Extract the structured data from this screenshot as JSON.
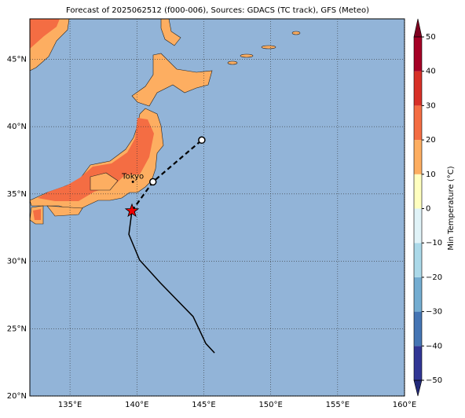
{
  "chart_data": {
    "type": "map",
    "title": "Forecast of 2025062512 (f000-006), Sources: GDACS (TC track), GFS (Meteo)",
    "xlim": [
      132,
      160
    ],
    "ylim": [
      20,
      48
    ],
    "xticks": [
      {
        "value": 135,
        "label": "135°E"
      },
      {
        "value": 140,
        "label": "140°E"
      },
      {
        "value": 145,
        "label": "145°E"
      },
      {
        "value": 150,
        "label": "150°E"
      },
      {
        "value": 155,
        "label": "155°E"
      },
      {
        "value": 160,
        "label": "160°E"
      }
    ],
    "yticks": [
      {
        "value": 20,
        "label": "20°N"
      },
      {
        "value": 25,
        "label": "25°N"
      },
      {
        "value": 30,
        "label": "30°N"
      },
      {
        "value": 35,
        "label": "35°N"
      },
      {
        "value": 40,
        "label": "40°N"
      },
      {
        "value": 45,
        "label": "45°N"
      }
    ],
    "grid": true,
    "track": {
      "observed": {
        "lon": [
          145.8,
          145.15,
          144.2,
          141.75,
          140.2,
          139.4,
          139.63
        ],
        "lat": [
          23.2,
          23.9,
          25.9,
          28.4,
          30.1,
          32.0,
          33.75
        ]
      },
      "forecast": {
        "lon": [
          139.63,
          141.2,
          144.85
        ],
        "lat": [
          33.75,
          35.9,
          39.0
        ]
      }
    },
    "current": {
      "lon": 139.63,
      "lat": 33.75
    },
    "city": {
      "name": "Tokyo",
      "lon": 139.7,
      "lat": 35.9
    },
    "colorbar": {
      "label": "Min Temperature (°C)",
      "lim": [
        -50,
        50
      ],
      "ticks": [
        {
          "value": -50,
          "label": "−50"
        },
        {
          "value": -40,
          "label": "−40"
        },
        {
          "value": -30,
          "label": "−30"
        },
        {
          "value": -20,
          "label": "−20"
        },
        {
          "value": -10,
          "label": "−10"
        },
        0,
        10,
        20,
        30,
        40,
        50
      ],
      "colors": [
        "#313695",
        "#4575b4",
        "#74add1",
        "#abd9e9",
        "#e0f3f8",
        "#ffffbf",
        "#fdae61",
        "#f46d43",
        "#d73027",
        "#a50026"
      ],
      "under_color": "#232a7a",
      "over_color": "#7f0020"
    }
  }
}
